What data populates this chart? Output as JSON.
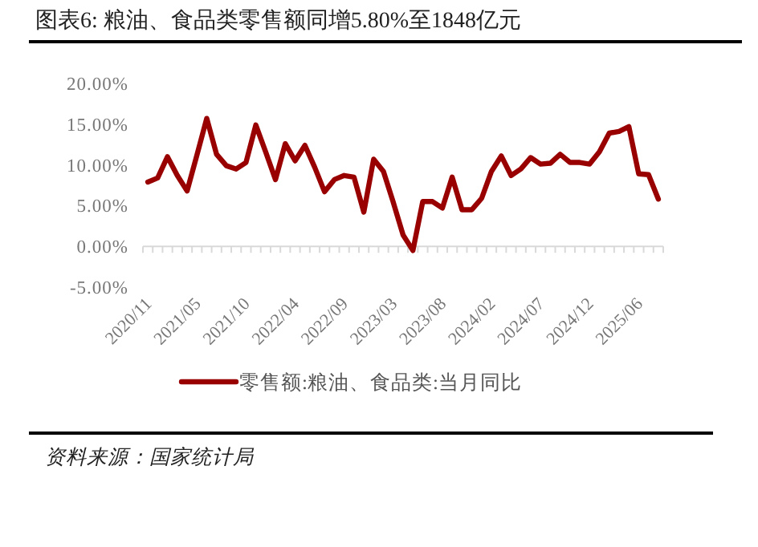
{
  "chart_data": {
    "type": "line",
    "title": "图表6: 粮油、食品类零售额同增5.80%至1848亿元",
    "categories": [
      "2020/11",
      null,
      null,
      null,
      null,
      "2021/05",
      null,
      null,
      null,
      null,
      "2021/10",
      null,
      null,
      null,
      null,
      "2022/04",
      null,
      null,
      null,
      null,
      "2022/09",
      null,
      null,
      null,
      null,
      "2023/03",
      null,
      null,
      null,
      null,
      "2023/08",
      null,
      null,
      null,
      null,
      "2024/02",
      null,
      null,
      null,
      null,
      "2024/07",
      null,
      null,
      null,
      null,
      "2024/12",
      null,
      null,
      null,
      null,
      "2025/06",
      null,
      null
    ],
    "series": [
      {
        "name": "零售额:粮油、食品类:当月同比",
        "color": "#990000",
        "values": [
          7.9,
          8.4,
          11.0,
          8.7,
          6.8,
          11.2,
          15.7,
          11.3,
          9.9,
          9.5,
          10.3,
          14.9,
          11.6,
          8.2,
          12.6,
          10.5,
          12.4,
          9.7,
          6.7,
          8.2,
          8.7,
          8.5,
          4.2,
          10.7,
          9.2,
          5.4,
          1.4,
          -0.5,
          5.5,
          5.5,
          4.7,
          8.5,
          4.5,
          4.5,
          5.9,
          9.2,
          11.1,
          8.7,
          9.5,
          10.9,
          10.1,
          10.2,
          11.3,
          10.3,
          10.3,
          10.1,
          11.6,
          13.9,
          14.1,
          14.7,
          8.9,
          8.8,
          5.8
        ]
      }
    ],
    "ylim": [
      -5,
      20
    ],
    "yticks": [
      {
        "value": -5,
        "label": "-5.00%"
      },
      {
        "value": 0,
        "label": "0.00%"
      },
      {
        "value": 5,
        "label": "5.00%"
      },
      {
        "value": 10,
        "label": "10.00%"
      },
      {
        "value": 15,
        "label": "15.00%"
      },
      {
        "value": 20,
        "label": "20.00%"
      }
    ],
    "legend": "bottom",
    "annotations": [
      "资料来源：国家统计局"
    ]
  }
}
